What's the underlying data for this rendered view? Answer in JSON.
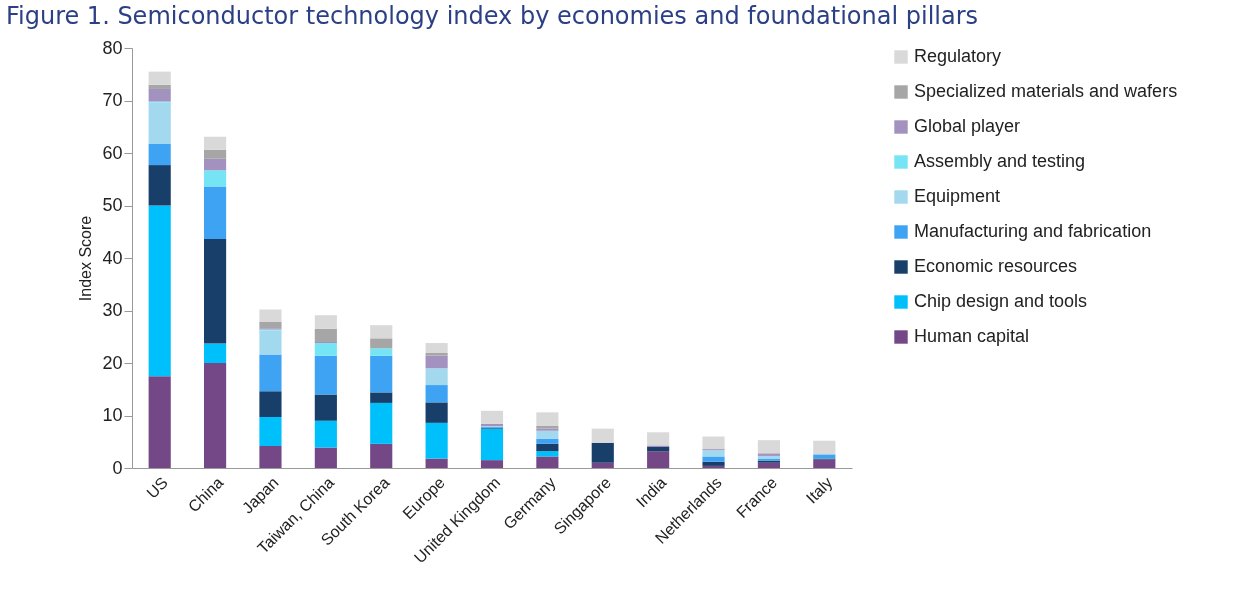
{
  "chart_data": {
    "type": "bar",
    "title": "Figure 1. Semiconductor technology index by economies and foundational pillars",
    "ylabel": "Index Score",
    "categories": [
      "US",
      "China",
      "Japan",
      "Taiwan, China",
      "South Korea",
      "Europe",
      "United Kingdom",
      "Germany",
      "Singapore",
      "India",
      "Netherlands",
      "France",
      "Italy"
    ],
    "stacked": true,
    "ylim": [
      0,
      80
    ],
    "yticks": [
      0,
      10,
      20,
      30,
      40,
      50,
      60,
      70,
      80
    ],
    "grid": false,
    "legend": "right",
    "series": [
      {
        "name": "Human capital",
        "color": "#744886",
        "values": [
          17.5,
          20,
          4.2,
          3.9,
          4.6,
          1.8,
          1.5,
          2.2,
          1.0,
          3.2,
          0.4,
          1.0,
          1.6
        ]
      },
      {
        "name": "Chip design and tools",
        "color": "#00c0fb",
        "values": [
          32.5,
          3.7,
          5.5,
          5.1,
          7.8,
          6.8,
          6.0,
          1.0,
          0,
          0,
          0,
          0,
          0
        ]
      },
      {
        "name": "Economic resources",
        "color": "#173f6a",
        "values": [
          7.7,
          19.9,
          4.9,
          5.0,
          2.0,
          3.9,
          0.2,
          1.4,
          3.8,
          0.8,
          0.8,
          0.4,
          0.2
        ]
      },
      {
        "name": "Manufacturing and fabrication",
        "color": "#3ea3f3",
        "values": [
          4.1,
          10,
          7.0,
          7.4,
          7.0,
          3.3,
          0.1,
          1.0,
          0,
          0,
          1.0,
          0.4,
          0.8
        ]
      },
      {
        "name": "Equipment",
        "color": "#a3d9ef",
        "values": [
          7.8,
          0,
          4.6,
          0,
          0,
          3.2,
          0.2,
          1.5,
          0,
          0,
          1.2,
          0.5,
          0
        ]
      },
      {
        "name": "Assembly and testing",
        "color": "#75e5f5",
        "values": [
          0.2,
          3.1,
          0.2,
          2.4,
          1.4,
          0,
          0,
          0,
          0,
          0,
          0,
          0,
          0
        ]
      },
      {
        "name": "Global player",
        "color": "#a391c0",
        "values": [
          2.4,
          2.2,
          0.2,
          0.2,
          0,
          2.4,
          0.4,
          0.4,
          0,
          0.3,
          0.2,
          0.5,
          0
        ]
      },
      {
        "name": "Specialized materials and wafers",
        "color": "#a6a6a6",
        "values": [
          0.8,
          1.7,
          1.2,
          2.5,
          1.9,
          0.5,
          null,
          0.5,
          0,
          0,
          0,
          0,
          0
        ]
      },
      {
        "name": "Regulatory",
        "color": "#d9d9d9",
        "values": [
          2.5,
          2.5,
          2.4,
          2.6,
          2.5,
          1.9,
          2.5,
          2.6,
          2.7,
          2.5,
          2.4,
          2.5,
          2.6
        ]
      }
    ]
  }
}
